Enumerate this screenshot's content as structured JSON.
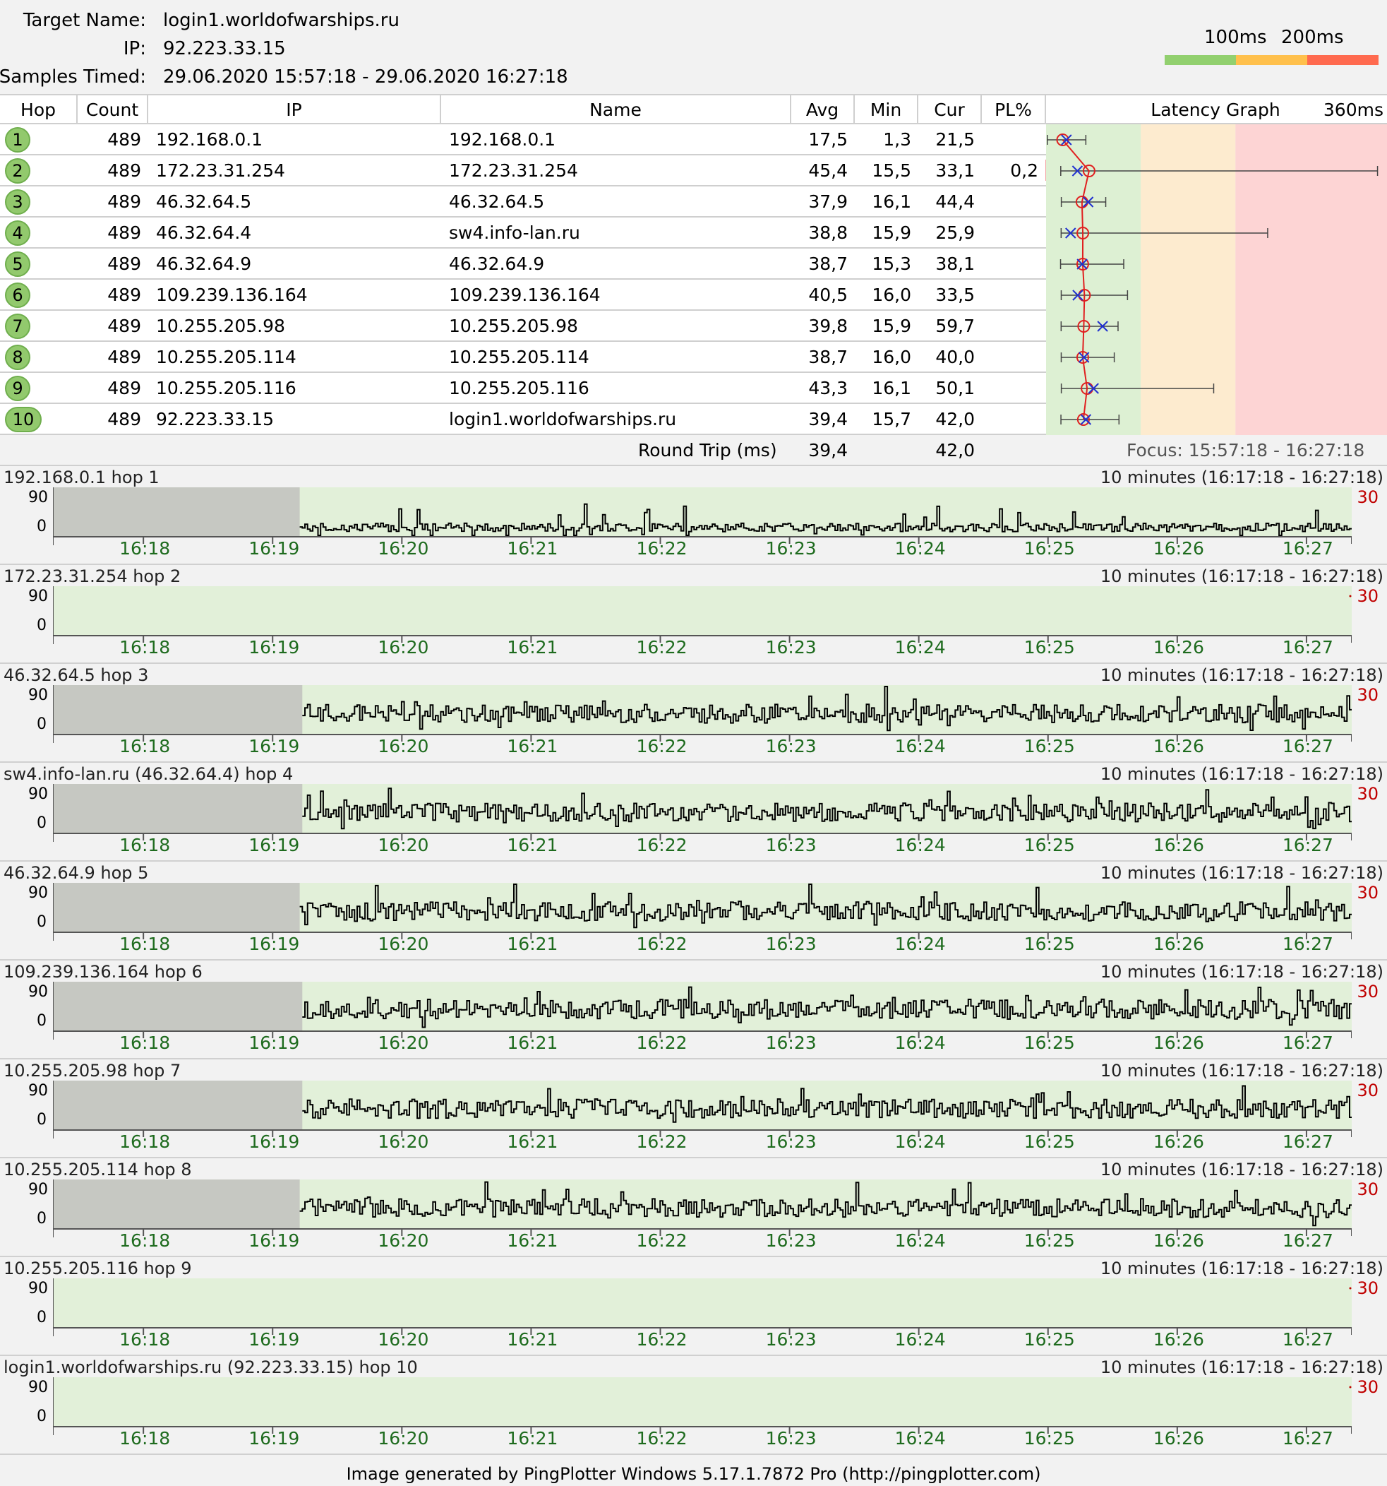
{
  "header": {
    "target_label": "Target Name:",
    "target_value": "login1.worldofwarships.ru",
    "ip_label": "IP:",
    "ip_value": "92.223.33.15",
    "samples_label": "Samples Timed:",
    "samples_value": "29.06.2020 15:57:18 - 29.06.2020 16:27:18",
    "legend_100": "100ms",
    "legend_200": "200ms",
    "legend_colors": [
      "#92d06f",
      "#ffc04c",
      "#ff6a4f"
    ]
  },
  "table": {
    "headers": {
      "hop": "Hop",
      "count": "Count",
      "ip": "IP",
      "name": "Name",
      "avg": "Avg",
      "min": "Min",
      "cur": "Cur",
      "pl": "PL%",
      "graph": "Latency Graph",
      "graph_max": "360ms"
    },
    "rows": [
      {
        "hop": "1",
        "count": "489",
        "ip": "192.168.0.1",
        "name": "192.168.0.1",
        "avg": "17,5",
        "min": "1,3",
        "cur": "21,5",
        "pl": ""
      },
      {
        "hop": "2",
        "count": "489",
        "ip": "172.23.31.254",
        "name": "172.23.31.254",
        "avg": "45,4",
        "min": "15,5",
        "cur": "33,1",
        "pl": "0,2"
      },
      {
        "hop": "3",
        "count": "489",
        "ip": "46.32.64.5",
        "name": "46.32.64.5",
        "avg": "37,9",
        "min": "16,1",
        "cur": "44,4",
        "pl": ""
      },
      {
        "hop": "4",
        "count": "489",
        "ip": "46.32.64.4",
        "name": "sw4.info-lan.ru",
        "avg": "38,8",
        "min": "15,9",
        "cur": "25,9",
        "pl": ""
      },
      {
        "hop": "5",
        "count": "489",
        "ip": "46.32.64.9",
        "name": "46.32.64.9",
        "avg": "38,7",
        "min": "15,3",
        "cur": "38,1",
        "pl": ""
      },
      {
        "hop": "6",
        "count": "489",
        "ip": "109.239.136.164",
        "name": "109.239.136.164",
        "avg": "40,5",
        "min": "16,0",
        "cur": "33,5",
        "pl": ""
      },
      {
        "hop": "7",
        "count": "489",
        "ip": "10.255.205.98",
        "name": "10.255.205.98",
        "avg": "39,8",
        "min": "15,9",
        "cur": "59,7",
        "pl": ""
      },
      {
        "hop": "8",
        "count": "489",
        "ip": "10.255.205.114",
        "name": "10.255.205.114",
        "avg": "38,7",
        "min": "16,0",
        "cur": "40,0",
        "pl": ""
      },
      {
        "hop": "9",
        "count": "489",
        "ip": "10.255.205.116",
        "name": "10.255.205.116",
        "avg": "43,3",
        "min": "16,1",
        "cur": "50,1",
        "pl": ""
      },
      {
        "hop": "10",
        "count": "489",
        "ip": "92.223.33.15",
        "name": "login1.worldofwarships.ru",
        "avg": "39,4",
        "min": "15,7",
        "cur": "42,0",
        "pl": ""
      }
    ],
    "roundtrip_label": "Round Trip (ms)",
    "roundtrip_avg": "39,4",
    "roundtrip_cur": "42,0",
    "focus": "Focus: 15:57:18 - 16:27:18"
  },
  "latency_graph": {
    "max_ms": 360,
    "zone_colors": [
      "#ddf0d3",
      "#fdebcf",
      "#fdd4d4"
    ],
    "zone_bounds_ms": [
      100,
      200
    ],
    "hops": [
      {
        "avg": 17.5,
        "cur": 21.5,
        "min": 1.3,
        "max": 42
      },
      {
        "avg": 45.4,
        "cur": 33.1,
        "min": 15.5,
        "max": 350
      },
      {
        "avg": 37.9,
        "cur": 44.4,
        "min": 16.1,
        "max": 63
      },
      {
        "avg": 38.8,
        "cur": 25.9,
        "min": 15.9,
        "max": 234
      },
      {
        "avg": 38.7,
        "cur": 38.1,
        "min": 15.3,
        "max": 82
      },
      {
        "avg": 40.5,
        "cur": 33.5,
        "min": 16.0,
        "max": 86
      },
      {
        "avg": 39.8,
        "cur": 59.7,
        "min": 15.9,
        "max": 76
      },
      {
        "avg": 38.7,
        "cur": 40.0,
        "min": 16.0,
        "max": 72
      },
      {
        "avg": 43.3,
        "cur": 50.1,
        "min": 16.1,
        "max": 177
      },
      {
        "avg": 39.4,
        "cur": 42.0,
        "min": 15.7,
        "max": 77
      }
    ]
  },
  "hop_charts": {
    "range_label": "10 minutes (16:17:18 - 16:27:18)",
    "y_top": "90",
    "y_bottom": "0",
    "right_label": "30",
    "time_ticks": [
      "16:18",
      "16:19",
      "16:20",
      "16:21",
      "16:22",
      "16:23",
      "16:24",
      "16:25",
      "16:26",
      "16:27"
    ],
    "panels": [
      {
        "title": "192.168.0.1 hop 1",
        "has_data": true,
        "baseline_ms": 17,
        "data_start_fraction": 0.19
      },
      {
        "title": "172.23.31.254 hop 2",
        "has_data": false,
        "baseline_ms": 0,
        "data_start_fraction": 0
      },
      {
        "title": "46.32.64.5 hop 3",
        "has_data": true,
        "baseline_ms": 38,
        "data_start_fraction": 0.192
      },
      {
        "title": "sw4.info-lan.ru (46.32.64.4) hop 4",
        "has_data": true,
        "baseline_ms": 38,
        "data_start_fraction": 0.192
      },
      {
        "title": "46.32.64.9 hop 5",
        "has_data": true,
        "baseline_ms": 38,
        "data_start_fraction": 0.19
      },
      {
        "title": "109.239.136.164 hop 6",
        "has_data": true,
        "baseline_ms": 40,
        "data_start_fraction": 0.192
      },
      {
        "title": "10.255.205.98 hop 7",
        "has_data": true,
        "baseline_ms": 39,
        "data_start_fraction": 0.192
      },
      {
        "title": "10.255.205.114 hop 8",
        "has_data": true,
        "baseline_ms": 38,
        "data_start_fraction": 0.19
      },
      {
        "title": "10.255.205.116 hop 9",
        "has_data": false,
        "baseline_ms": 0,
        "data_start_fraction": 0
      },
      {
        "title": "login1.worldofwarships.ru (92.223.33.15) hop 10",
        "has_data": false,
        "baseline_ms": 0,
        "data_start_fraction": 0
      }
    ]
  },
  "footer": "Image generated by PingPlotter Windows 5.17.1.7872 Pro (http://pingplotter.com)"
}
